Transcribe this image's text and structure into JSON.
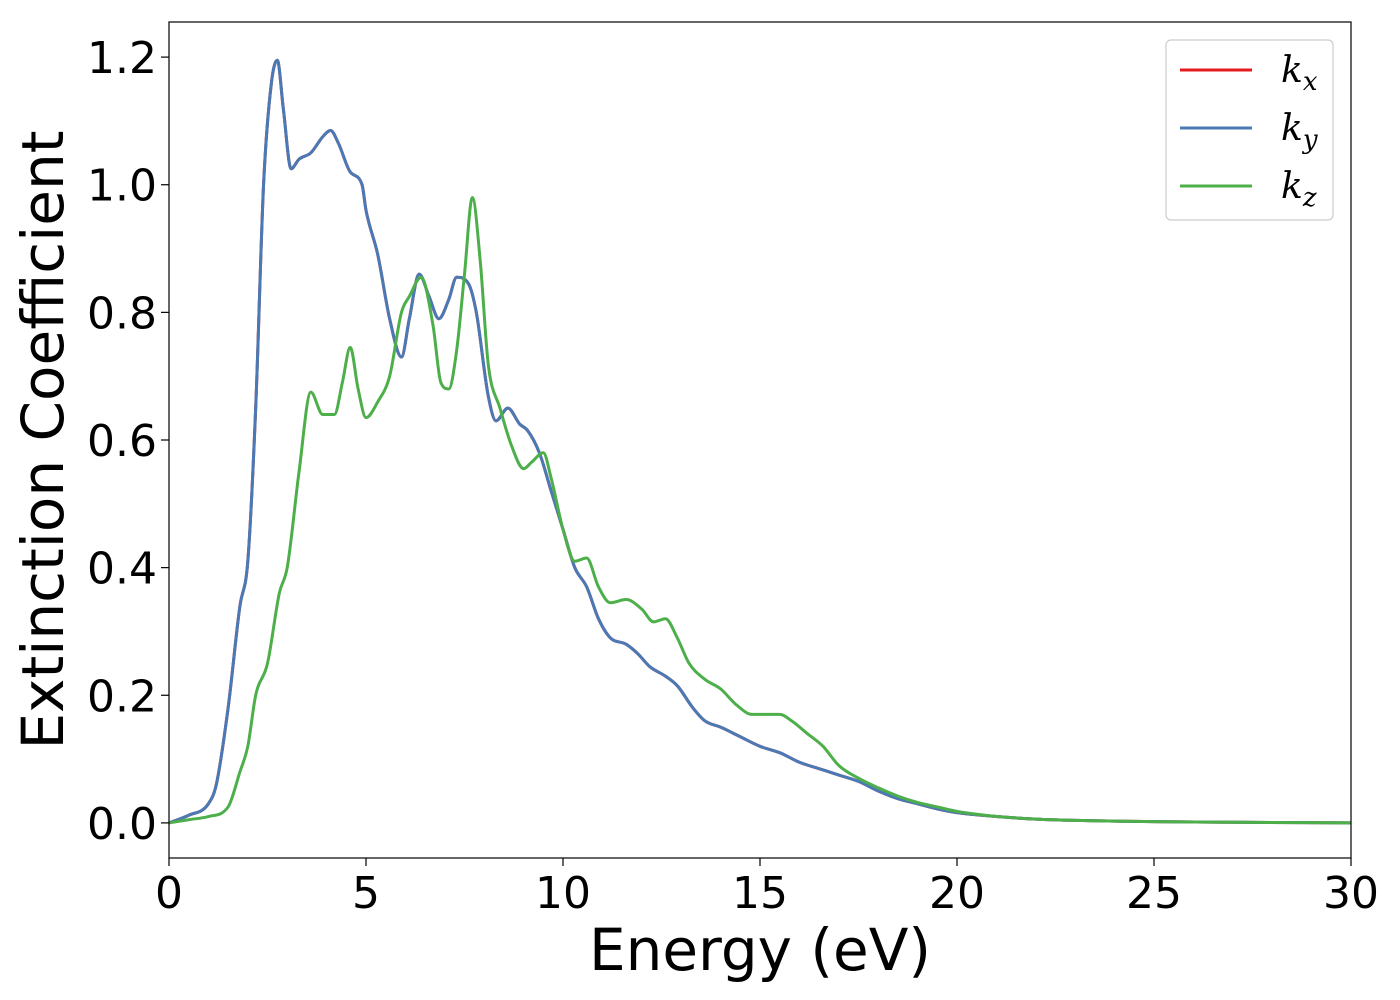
{
  "chart_data": {
    "type": "line",
    "xlabel": "Energy (eV)",
    "ylabel": "Extinction Coefficient",
    "xlim": [
      0,
      30
    ],
    "ylim": [
      -0.055,
      1.255
    ],
    "xticks": [
      0,
      5,
      10,
      15,
      20,
      25,
      30
    ],
    "xtick_labels": [
      "0",
      "5",
      "10",
      "15",
      "20",
      "25",
      "30"
    ],
    "yticks": [
      0.0,
      0.2,
      0.4,
      0.6,
      0.8,
      1.0,
      1.2
    ],
    "ytick_labels": [
      "0.0",
      "0.2",
      "0.4",
      "0.6",
      "0.8",
      "1.0",
      "1.2"
    ],
    "grid": false,
    "legend_position": "top-right",
    "series": [
      {
        "name": "k_x",
        "label_base": "k",
        "label_sub": "x",
        "color": "#e41a1c",
        "x": [
          0,
          0.5,
          1.0,
          1.2,
          1.5,
          1.8,
          2.0,
          2.2,
          2.4,
          2.6,
          2.75,
          2.9,
          3.1,
          3.3,
          3.6,
          3.9,
          4.1,
          4.3,
          4.6,
          4.9,
          5.0,
          5.3,
          5.6,
          5.9,
          6.1,
          6.35,
          6.6,
          6.85,
          7.1,
          7.3,
          7.6,
          7.8,
          8.1,
          8.3,
          8.6,
          8.9,
          9.1,
          9.4,
          9.7,
          10.0,
          10.3,
          10.6,
          10.9,
          11.2,
          11.6,
          11.9,
          12.2,
          12.6,
          12.9,
          13.3,
          13.6,
          14.0,
          14.5,
          15.0,
          15.5,
          16.0,
          16.5,
          17.0,
          17.5,
          18.0,
          18.5,
          19.0,
          19.5,
          20.0,
          21.0,
          22.0,
          23.0,
          25.0,
          27.0,
          30.0
        ],
        "y": [
          0.0,
          0.012,
          0.03,
          0.06,
          0.18,
          0.34,
          0.41,
          0.65,
          1.0,
          1.16,
          1.195,
          1.12,
          1.025,
          1.04,
          1.05,
          1.075,
          1.085,
          1.065,
          1.02,
          1.0,
          0.96,
          0.89,
          0.79,
          0.73,
          0.79,
          0.86,
          0.825,
          0.79,
          0.82,
          0.855,
          0.845,
          0.8,
          0.67,
          0.63,
          0.65,
          0.625,
          0.615,
          0.58,
          0.52,
          0.46,
          0.4,
          0.37,
          0.32,
          0.29,
          0.28,
          0.265,
          0.245,
          0.23,
          0.215,
          0.18,
          0.16,
          0.15,
          0.135,
          0.12,
          0.11,
          0.095,
          0.085,
          0.075,
          0.065,
          0.05,
          0.038,
          0.03,
          0.022,
          0.016,
          0.01,
          0.006,
          0.004,
          0.002,
          0.001,
          0.0
        ]
      },
      {
        "name": "k_y",
        "label_base": "k",
        "label_sub": "y",
        "color": "#4a7ab5",
        "x": [
          0,
          0.5,
          1.0,
          1.2,
          1.5,
          1.8,
          2.0,
          2.2,
          2.4,
          2.6,
          2.75,
          2.9,
          3.1,
          3.3,
          3.6,
          3.9,
          4.1,
          4.3,
          4.6,
          4.9,
          5.0,
          5.3,
          5.6,
          5.9,
          6.1,
          6.35,
          6.6,
          6.85,
          7.1,
          7.3,
          7.6,
          7.8,
          8.1,
          8.3,
          8.6,
          8.9,
          9.1,
          9.4,
          9.7,
          10.0,
          10.3,
          10.6,
          10.9,
          11.2,
          11.6,
          11.9,
          12.2,
          12.6,
          12.9,
          13.3,
          13.6,
          14.0,
          14.5,
          15.0,
          15.5,
          16.0,
          16.5,
          17.0,
          17.5,
          18.0,
          18.5,
          19.0,
          19.5,
          20.0,
          21.0,
          22.0,
          23.0,
          25.0,
          27.0,
          30.0
        ],
        "y": [
          0.0,
          0.012,
          0.03,
          0.06,
          0.18,
          0.34,
          0.41,
          0.65,
          1.0,
          1.16,
          1.195,
          1.12,
          1.025,
          1.04,
          1.05,
          1.075,
          1.085,
          1.065,
          1.02,
          1.0,
          0.96,
          0.89,
          0.79,
          0.73,
          0.79,
          0.86,
          0.825,
          0.79,
          0.82,
          0.855,
          0.845,
          0.8,
          0.67,
          0.63,
          0.65,
          0.625,
          0.615,
          0.58,
          0.52,
          0.46,
          0.4,
          0.37,
          0.32,
          0.29,
          0.28,
          0.265,
          0.245,
          0.23,
          0.215,
          0.18,
          0.16,
          0.15,
          0.135,
          0.12,
          0.11,
          0.095,
          0.085,
          0.075,
          0.065,
          0.05,
          0.038,
          0.03,
          0.022,
          0.016,
          0.01,
          0.006,
          0.004,
          0.002,
          0.001,
          0.0
        ]
      },
      {
        "name": "k_z",
        "label_base": "k",
        "label_sub": "z",
        "color": "#4daf4a",
        "x": [
          0,
          0.5,
          1.0,
          1.5,
          1.8,
          2.0,
          2.2,
          2.5,
          2.8,
          3.0,
          3.3,
          3.6,
          3.9,
          4.2,
          4.4,
          4.6,
          4.8,
          5.0,
          5.3,
          5.6,
          5.9,
          6.1,
          6.4,
          6.7,
          6.9,
          7.1,
          7.3,
          7.5,
          7.7,
          7.9,
          8.1,
          8.4,
          8.7,
          9.0,
          9.2,
          9.5,
          9.7,
          10.0,
          10.3,
          10.6,
          10.9,
          11.2,
          11.6,
          12.0,
          12.3,
          12.6,
          12.9,
          13.2,
          13.6,
          14.0,
          14.4,
          14.8,
          15.2,
          15.5,
          15.8,
          16.2,
          16.6,
          17.0,
          17.5,
          18.0,
          18.5,
          19.0,
          19.5,
          20.0,
          21.0,
          22.0,
          23.0,
          25.0,
          27.0,
          30.0
        ],
        "y": [
          0.0,
          0.005,
          0.01,
          0.025,
          0.08,
          0.12,
          0.2,
          0.25,
          0.36,
          0.4,
          0.55,
          0.675,
          0.64,
          0.64,
          0.69,
          0.745,
          0.68,
          0.635,
          0.66,
          0.7,
          0.8,
          0.825,
          0.855,
          0.78,
          0.69,
          0.68,
          0.74,
          0.86,
          0.98,
          0.88,
          0.72,
          0.65,
          0.59,
          0.555,
          0.565,
          0.58,
          0.54,
          0.46,
          0.41,
          0.415,
          0.37,
          0.345,
          0.35,
          0.335,
          0.315,
          0.32,
          0.29,
          0.25,
          0.225,
          0.21,
          0.185,
          0.17,
          0.17,
          0.17,
          0.16,
          0.14,
          0.12,
          0.09,
          0.07,
          0.055,
          0.042,
          0.032,
          0.025,
          0.018,
          0.01,
          0.006,
          0.004,
          0.002,
          0.001,
          0.0
        ]
      }
    ]
  }
}
